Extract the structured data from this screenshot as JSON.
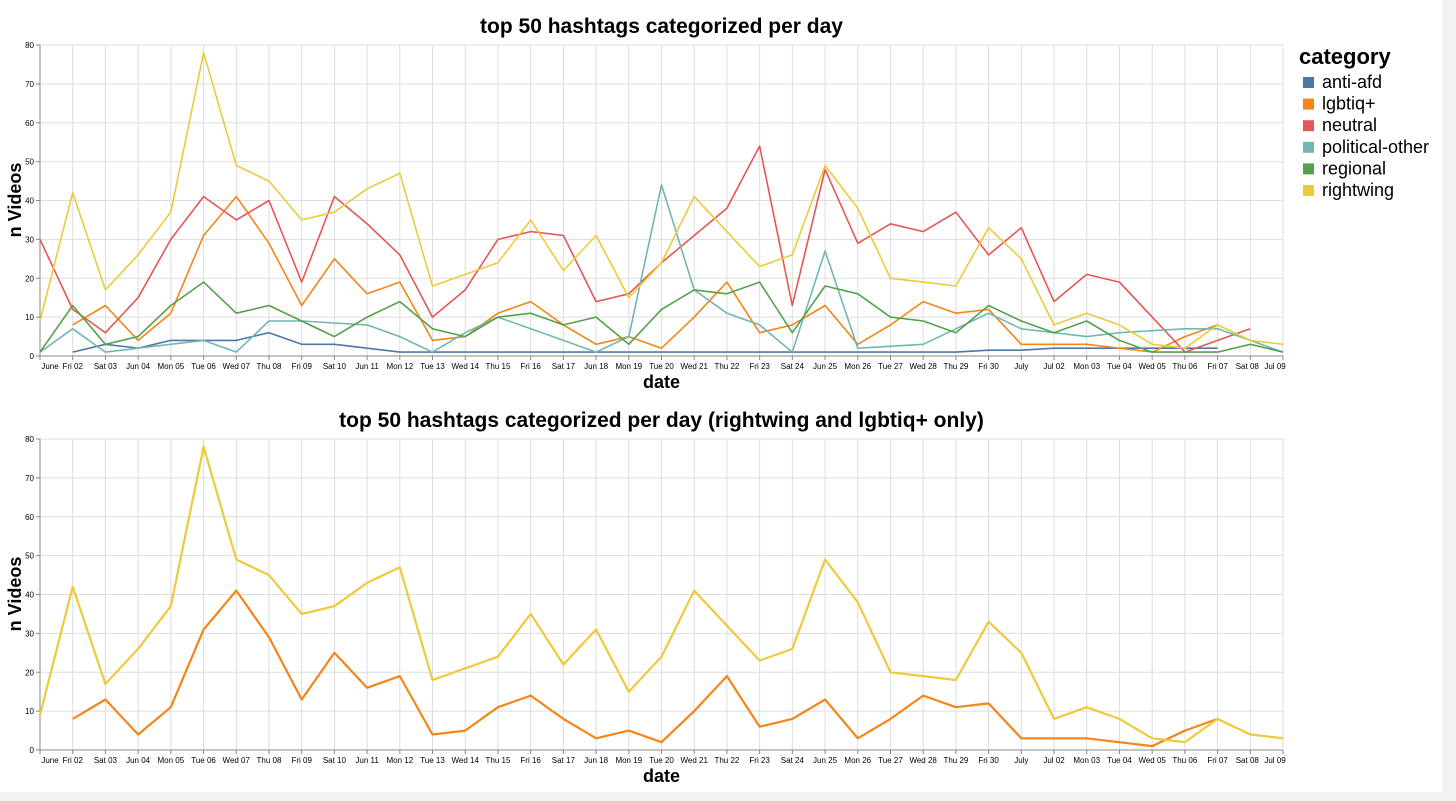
{
  "legend": {
    "title": "category",
    "items": [
      {
        "label": "anti-afd",
        "color": "#4c78a8"
      },
      {
        "label": "lgbtiq+",
        "color": "#f58518"
      },
      {
        "label": "neutral",
        "color": "#e45756"
      },
      {
        "label": "political-other",
        "color": "#72b7b2"
      },
      {
        "label": "regional",
        "color": "#54a24b"
      },
      {
        "label": "rightwing",
        "color": "#eeca3b"
      }
    ]
  },
  "chart_data": [
    {
      "type": "line",
      "title": "top 50 hashtags categorized per day",
      "xlabel": "date",
      "ylabel": "n Videos",
      "ylim": [
        0,
        80
      ],
      "yticks": [
        0,
        10,
        20,
        30,
        40,
        50,
        60,
        70,
        80
      ],
      "grid": true,
      "legend_position": "right",
      "x": [
        "2023-06-01",
        "2023-06-02",
        "2023-06-03",
        "2023-06-04",
        "2023-06-05",
        "2023-06-06",
        "2023-06-07",
        "2023-06-08",
        "2023-06-09",
        "2023-06-10",
        "2023-06-11",
        "2023-06-12",
        "2023-06-13",
        "2023-06-14",
        "2023-06-15",
        "2023-06-16",
        "2023-06-17",
        "2023-06-18",
        "2023-06-19",
        "2023-06-20",
        "2023-06-21",
        "2023-06-22",
        "2023-06-23",
        "2023-06-24",
        "2023-06-25",
        "2023-06-26",
        "2023-06-27",
        "2023-06-28",
        "2023-06-29",
        "2023-06-30",
        "2023-07-01",
        "2023-07-02",
        "2023-07-03",
        "2023-07-04",
        "2023-07-05",
        "2023-07-06",
        "2023-07-07",
        "2023-07-08",
        "2023-07-09"
      ],
      "x_ticks": [
        "June",
        "Fri 02",
        "Sat 03",
        "Jun 04",
        "Mon 05",
        "Tue 06",
        "Wed 07",
        "Thu 08",
        "Fri 09",
        "Sat 10",
        "Jun 11",
        "Mon 12",
        "Tue 13",
        "Wed 14",
        "Thu 15",
        "Fri 16",
        "Sat 17",
        "Jun 18",
        "Mon 19",
        "Tue 20",
        "Wed 21",
        "Thu 22",
        "Fri 23",
        "Sat 24",
        "Jun 25",
        "Mon 26",
        "Tue 27",
        "Wed 28",
        "Thu 29",
        "Fri 30",
        "July",
        "Jul 02",
        "Mon 03",
        "Tue 04",
        "Wed 05",
        "Thu 06",
        "Fri 07",
        "Sat 08",
        "Jul 09"
      ],
      "series": [
        {
          "name": "anti-afd",
          "color": "#4c78a8",
          "values": [
            null,
            1,
            3,
            2,
            4,
            4,
            4,
            6,
            3,
            3,
            2,
            1,
            1,
            1,
            1,
            1,
            1,
            1,
            1,
            1,
            1,
            1,
            1,
            1,
            1,
            1,
            1,
            1,
            1,
            1.5,
            1.5,
            2,
            2,
            2,
            2,
            2,
            2,
            null,
            null
          ]
        },
        {
          "name": "lgbtiq+",
          "color": "#f58518",
          "values": [
            null,
            8,
            13,
            4,
            11,
            31,
            41,
            29,
            13,
            25,
            16,
            19,
            4,
            5,
            11,
            14,
            8,
            3,
            5,
            2,
            10,
            19,
            6,
            8,
            13,
            3,
            8,
            14,
            11,
            12,
            3,
            3,
            3,
            2,
            1,
            5,
            8,
            null,
            null
          ]
        },
        {
          "name": "neutral",
          "color": "#e45756",
          "values": [
            30,
            12,
            6,
            15,
            30,
            41,
            35,
            40,
            19,
            41,
            34,
            26,
            10,
            17,
            30,
            32,
            31,
            14,
            16,
            24,
            31,
            38,
            54,
            13,
            48,
            29,
            34,
            32,
            37,
            26,
            33,
            14,
            21,
            19,
            10,
            1,
            4,
            7,
            null
          ]
        },
        {
          "name": "political-other",
          "color": "#72b7b2",
          "values": [
            1,
            7,
            1,
            2,
            3,
            4,
            1,
            9,
            9,
            8.5,
            8,
            5,
            1,
            6,
            10,
            7,
            4,
            1,
            5,
            44,
            17,
            11,
            8,
            1,
            27,
            2,
            2.5,
            3,
            7,
            11,
            7,
            6,
            5,
            6,
            6.5,
            7,
            7,
            4,
            1
          ]
        },
        {
          "name": "regional",
          "color": "#54a24b",
          "values": [
            1,
            13,
            3,
            5,
            13,
            19,
            11,
            13,
            9,
            5,
            10,
            14,
            7,
            5,
            10,
            11,
            8,
            10,
            3,
            12,
            17,
            16,
            19,
            6,
            18,
            16,
            10,
            9,
            6,
            13,
            9,
            6,
            9,
            4,
            1,
            1,
            1,
            3,
            1
          ]
        },
        {
          "name": "rightwing",
          "color": "#eeca3b",
          "values": [
            9,
            42,
            17,
            26,
            37,
            78,
            49,
            45,
            35,
            37,
            43,
            47,
            18,
            21,
            24,
            35,
            22,
            31,
            15,
            24,
            41,
            32,
            23,
            26,
            49,
            38,
            20,
            19,
            18,
            33,
            25,
            8,
            11,
            8,
            3,
            2,
            8,
            4,
            3
          ]
        }
      ]
    },
    {
      "type": "line",
      "title": "top 50 hashtags categorized per day (rightwing and lgbtiq+ only)",
      "xlabel": "date",
      "ylabel": "n Videos",
      "ylim": [
        0,
        80
      ],
      "yticks": [
        0,
        10,
        20,
        30,
        40,
        50,
        60,
        70,
        80
      ],
      "grid": true,
      "x": [
        "2023-06-01",
        "2023-06-02",
        "2023-06-03",
        "2023-06-04",
        "2023-06-05",
        "2023-06-06",
        "2023-06-07",
        "2023-06-08",
        "2023-06-09",
        "2023-06-10",
        "2023-06-11",
        "2023-06-12",
        "2023-06-13",
        "2023-06-14",
        "2023-06-15",
        "2023-06-16",
        "2023-06-17",
        "2023-06-18",
        "2023-06-19",
        "2023-06-20",
        "2023-06-21",
        "2023-06-22",
        "2023-06-23",
        "2023-06-24",
        "2023-06-25",
        "2023-06-26",
        "2023-06-27",
        "2023-06-28",
        "2023-06-29",
        "2023-06-30",
        "2023-07-01",
        "2023-07-02",
        "2023-07-03",
        "2023-07-04",
        "2023-07-05",
        "2023-07-06",
        "2023-07-07",
        "2023-07-08",
        "2023-07-09"
      ],
      "x_ticks": [
        "June",
        "Fri 02",
        "Sat 03",
        "Jun 04",
        "Mon 05",
        "Tue 06",
        "Wed 07",
        "Thu 08",
        "Fri 09",
        "Sat 10",
        "Jun 11",
        "Mon 12",
        "Tue 13",
        "Wed 14",
        "Thu 15",
        "Fri 16",
        "Sat 17",
        "Jun 18",
        "Mon 19",
        "Tue 20",
        "Wed 21",
        "Thu 22",
        "Fri 23",
        "Sat 24",
        "Jun 25",
        "Mon 26",
        "Tue 27",
        "Wed 28",
        "Thu 29",
        "Fri 30",
        "July",
        "Jul 02",
        "Mon 03",
        "Tue 04",
        "Wed 05",
        "Thu 06",
        "Fri 07",
        "Sat 08",
        "Jul 09"
      ],
      "series": [
        {
          "name": "lgbtiq+",
          "color": "#f58518",
          "values": [
            null,
            8,
            13,
            4,
            11,
            31,
            41,
            29,
            13,
            25,
            16,
            19,
            4,
            5,
            11,
            14,
            8,
            3,
            5,
            2,
            10,
            19,
            6,
            8,
            13,
            3,
            8,
            14,
            11,
            12,
            3,
            3,
            3,
            2,
            1,
            5,
            8,
            null,
            null
          ]
        },
        {
          "name": "rightwing",
          "color": "#eeca3b",
          "values": [
            9,
            42,
            17,
            26,
            37,
            78,
            49,
            45,
            35,
            37,
            43,
            47,
            18,
            21,
            24,
            35,
            22,
            31,
            15,
            24,
            41,
            32,
            23,
            26,
            49,
            38,
            20,
            19,
            18,
            33,
            25,
            8,
            11,
            8,
            3,
            2,
            8,
            4,
            3
          ]
        }
      ]
    }
  ]
}
